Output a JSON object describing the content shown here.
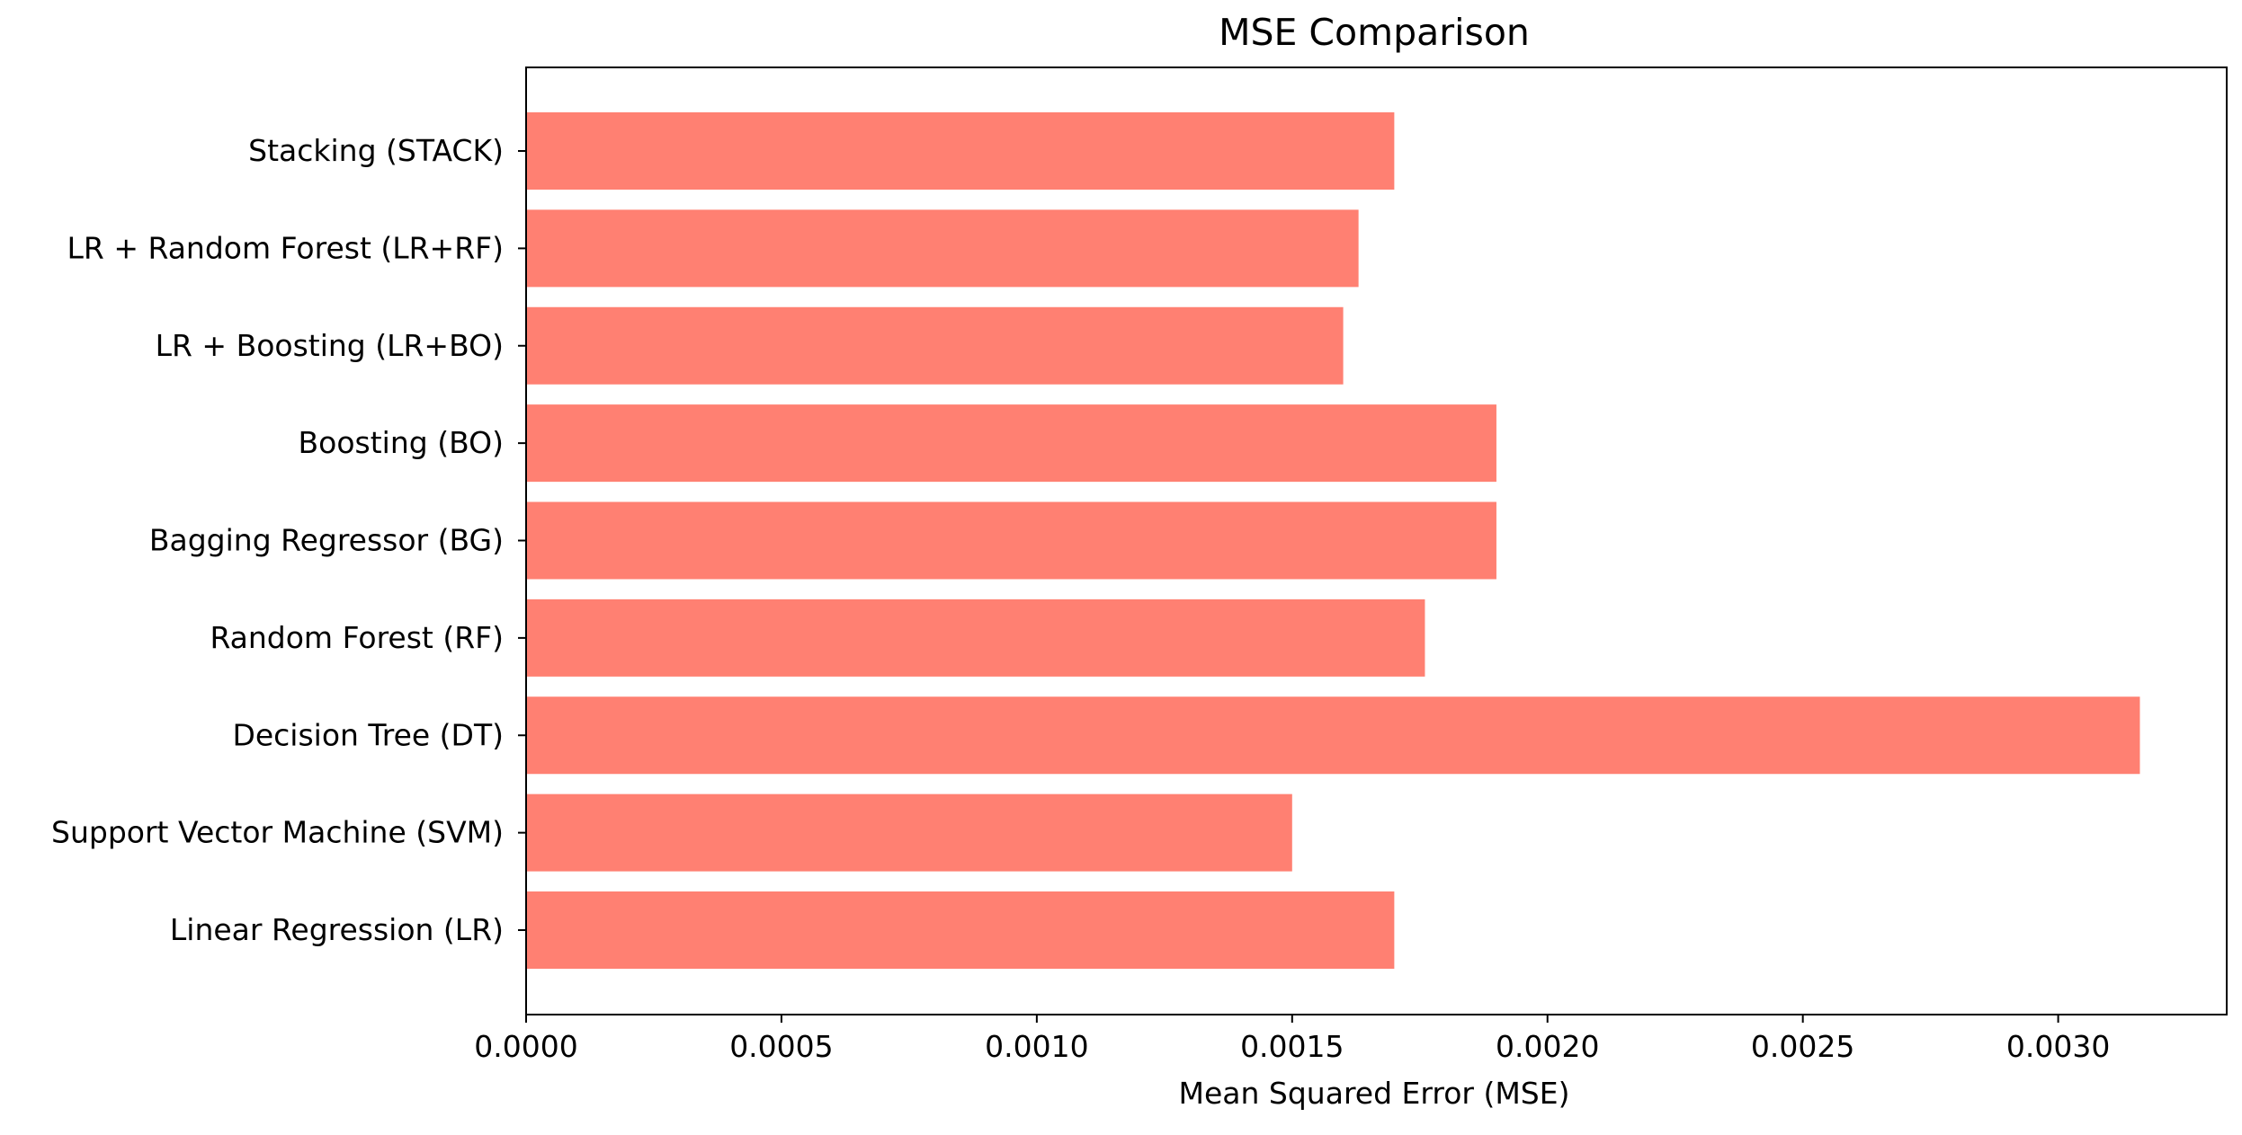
{
  "chart_data": {
    "type": "bar",
    "orientation": "horizontal",
    "title": "MSE Comparison",
    "xlabel": "Mean Squared Error (MSE)",
    "ylabel": "",
    "xlim": [
      0,
      0.00333
    ],
    "x_ticks": [
      0,
      0.0005,
      0.001,
      0.0015,
      0.002,
      0.0025,
      0.003
    ],
    "x_tick_labels": [
      "0.0000",
      "0.0005",
      "0.0010",
      "0.0015",
      "0.0020",
      "0.0025",
      "0.0030"
    ],
    "categories": [
      "Linear Regression (LR)",
      "Support Vector Machine (SVM)",
      "Decision Tree (DT)",
      "Random Forest (RF)",
      "Bagging Regressor (BG)",
      "Boosting (BO)",
      "LR + Boosting (LR+BO)",
      "LR + Random Forest (LR+RF)",
      "Stacking (STACK)"
    ],
    "values": [
      0.0017,
      0.0015,
      0.00316,
      0.00176,
      0.0019,
      0.0019,
      0.0016,
      0.00163,
      0.0017
    ],
    "bar_color": "#ff8072",
    "grid": false,
    "legend": "none"
  }
}
